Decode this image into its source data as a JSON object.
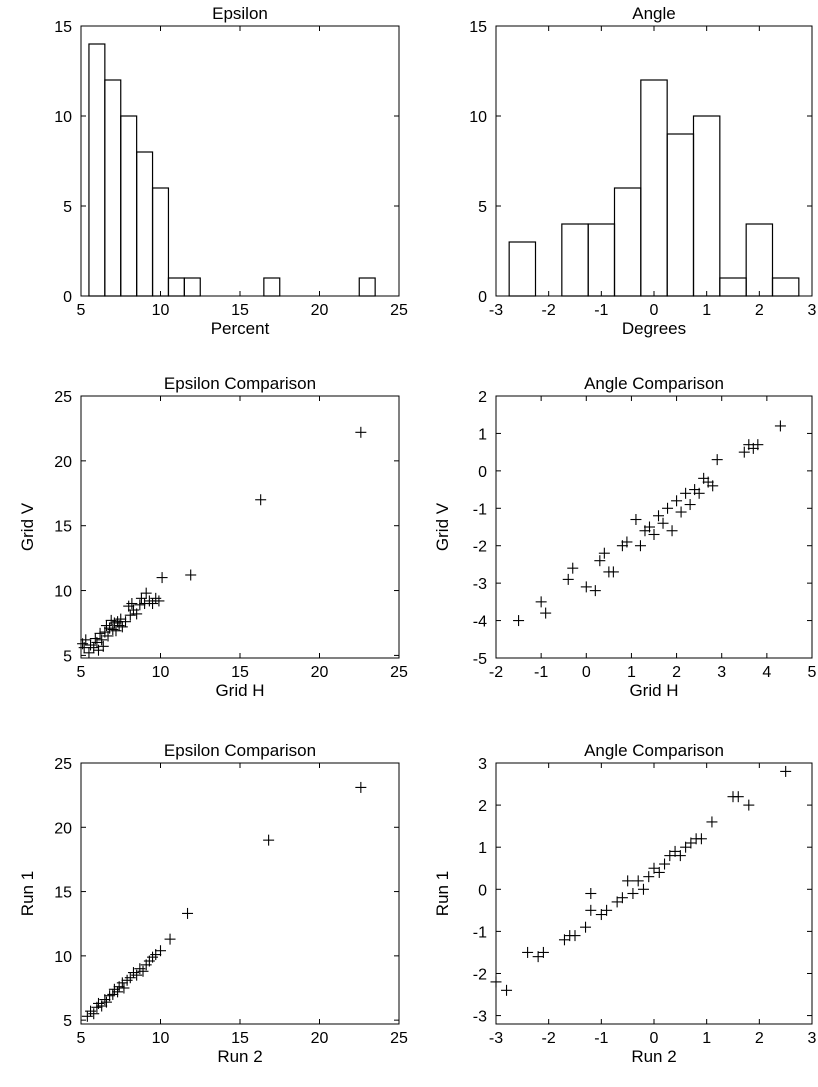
{
  "chart_data": [
    {
      "type": "histogram",
      "title": "Epsilon",
      "xlabel": "Percent",
      "ylabel": "",
      "xlim": [
        5,
        25
      ],
      "ylim": [
        0,
        15
      ],
      "xticks": [
        5,
        10,
        15,
        20,
        25
      ],
      "yticks": [
        0,
        5,
        10,
        15
      ],
      "bins": [
        {
          "x0": 5.5,
          "x1": 6.5,
          "count": 14
        },
        {
          "x0": 6.5,
          "x1": 7.5,
          "count": 12
        },
        {
          "x0": 7.5,
          "x1": 8.5,
          "count": 10
        },
        {
          "x0": 8.5,
          "x1": 9.5,
          "count": 8
        },
        {
          "x0": 9.5,
          "x1": 10.5,
          "count": 6
        },
        {
          "x0": 10.5,
          "x1": 11.5,
          "count": 1
        },
        {
          "x0": 11.5,
          "x1": 12.5,
          "count": 1
        },
        {
          "x0": 12.5,
          "x1": 13.5,
          "count": 0
        },
        {
          "x0": 13.5,
          "x1": 14.5,
          "count": 0
        },
        {
          "x0": 14.5,
          "x1": 15.5,
          "count": 0
        },
        {
          "x0": 15.5,
          "x1": 16.5,
          "count": 0
        },
        {
          "x0": 16.5,
          "x1": 17.5,
          "count": 1
        },
        {
          "x0": 17.5,
          "x1": 18.5,
          "count": 0
        },
        {
          "x0": 18.5,
          "x1": 19.5,
          "count": 0
        },
        {
          "x0": 19.5,
          "x1": 20.5,
          "count": 0
        },
        {
          "x0": 20.5,
          "x1": 21.5,
          "count": 0
        },
        {
          "x0": 21.5,
          "x1": 22.5,
          "count": 0
        },
        {
          "x0": 22.5,
          "x1": 23.5,
          "count": 1
        }
      ]
    },
    {
      "type": "histogram",
      "title": "Angle",
      "xlabel": "Degrees",
      "ylabel": "",
      "xlim": [
        -3,
        3
      ],
      "ylim": [
        0,
        15
      ],
      "xticks": [
        -3,
        -2,
        -1,
        0,
        1,
        2,
        3
      ],
      "yticks": [
        0,
        5,
        10,
        15
      ],
      "bins": [
        {
          "x0": -2.75,
          "x1": -2.25,
          "count": 3
        },
        {
          "x0": -2.25,
          "x1": -1.75,
          "count": 0
        },
        {
          "x0": -1.75,
          "x1": -1.25,
          "count": 4
        },
        {
          "x0": -1.25,
          "x1": -0.75,
          "count": 4
        },
        {
          "x0": -0.75,
          "x1": -0.25,
          "count": 6
        },
        {
          "x0": -0.25,
          "x1": 0.25,
          "count": 12
        },
        {
          "x0": 0.25,
          "x1": 0.75,
          "count": 9
        },
        {
          "x0": 0.75,
          "x1": 1.25,
          "count": 10
        },
        {
          "x0": 1.25,
          "x1": 1.75,
          "count": 1
        },
        {
          "x0": 1.75,
          "x1": 2.25,
          "count": 4
        },
        {
          "x0": 2.25,
          "x1": 2.75,
          "count": 1
        }
      ]
    },
    {
      "type": "scatter",
      "title": "Epsilon Comparison",
      "xlabel": "Grid H",
      "ylabel": "Grid V",
      "xlim": [
        5,
        25
      ],
      "ylim": [
        4.8,
        25
      ],
      "xticks": [
        5,
        10,
        15,
        20,
        25
      ],
      "yticks": [
        5,
        10,
        15,
        20,
        25
      ],
      "points": [
        [
          5.1,
          5.9
        ],
        [
          5.2,
          5.6
        ],
        [
          5.3,
          6.2
        ],
        [
          5.5,
          5.2
        ],
        [
          5.6,
          5.8
        ],
        [
          5.8,
          5.6
        ],
        [
          5.9,
          6.3
        ],
        [
          6.0,
          6.0
        ],
        [
          6.1,
          5.4
        ],
        [
          6.2,
          6.7
        ],
        [
          6.3,
          6.2
        ],
        [
          6.4,
          5.7
        ],
        [
          6.5,
          6.8
        ],
        [
          6.6,
          7.3
        ],
        [
          6.7,
          6.5
        ],
        [
          6.8,
          7.1
        ],
        [
          6.9,
          7.7
        ],
        [
          7.0,
          7.0
        ],
        [
          7.1,
          7.5
        ],
        [
          7.2,
          6.9
        ],
        [
          7.3,
          7.6
        ],
        [
          7.4,
          7.3
        ],
        [
          7.5,
          7.8
        ],
        [
          7.6,
          7.2
        ],
        [
          7.8,
          7.6
        ],
        [
          8.0,
          8.8
        ],
        [
          8.1,
          8.1
        ],
        [
          8.2,
          9.0
        ],
        [
          8.3,
          8.5
        ],
        [
          8.5,
          8.2
        ],
        [
          8.7,
          8.9
        ],
        [
          8.8,
          9.4
        ],
        [
          9.0,
          9.0
        ],
        [
          9.1,
          9.8
        ],
        [
          9.3,
          9.2
        ],
        [
          9.5,
          9.0
        ],
        [
          9.7,
          9.4
        ],
        [
          9.9,
          9.2
        ],
        [
          10.1,
          11.0
        ],
        [
          11.9,
          11.2
        ],
        [
          16.3,
          17.0
        ],
        [
          22.6,
          22.2
        ]
      ]
    },
    {
      "type": "scatter",
      "title": "Angle Comparison",
      "xlabel": "Grid H",
      "ylabel": "Grid V",
      "xlim": [
        -2,
        5
      ],
      "ylim": [
        -5,
        2
      ],
      "xticks": [
        -2,
        -1,
        0,
        1,
        2,
        3,
        4,
        5
      ],
      "yticks": [
        -5,
        -4,
        -3,
        -2,
        -1,
        0,
        1,
        2
      ],
      "points": [
        [
          -1.5,
          -4.0
        ],
        [
          -1.0,
          -3.5
        ],
        [
          -0.9,
          -3.8
        ],
        [
          -0.4,
          -2.9
        ],
        [
          -0.3,
          -2.6
        ],
        [
          0.0,
          -3.1
        ],
        [
          0.2,
          -3.2
        ],
        [
          0.3,
          -2.4
        ],
        [
          0.4,
          -2.2
        ],
        [
          0.5,
          -2.7
        ],
        [
          0.6,
          -2.7
        ],
        [
          0.8,
          -2.0
        ],
        [
          0.9,
          -1.9
        ],
        [
          1.1,
          -1.3
        ],
        [
          1.2,
          -2.0
        ],
        [
          1.3,
          -1.6
        ],
        [
          1.4,
          -1.5
        ],
        [
          1.5,
          -1.7
        ],
        [
          1.6,
          -1.2
        ],
        [
          1.7,
          -1.4
        ],
        [
          1.8,
          -1.0
        ],
        [
          1.9,
          -1.6
        ],
        [
          2.0,
          -0.8
        ],
        [
          2.1,
          -1.1
        ],
        [
          2.2,
          -0.6
        ],
        [
          2.3,
          -0.9
        ],
        [
          2.4,
          -0.5
        ],
        [
          2.5,
          -0.6
        ],
        [
          2.6,
          -0.2
        ],
        [
          2.7,
          -0.3
        ],
        [
          2.8,
          -0.4
        ],
        [
          2.9,
          0.3
        ],
        [
          3.5,
          0.5
        ],
        [
          3.6,
          0.7
        ],
        [
          3.7,
          0.6
        ],
        [
          3.8,
          0.7
        ],
        [
          4.3,
          1.2
        ]
      ]
    },
    {
      "type": "scatter",
      "title": "Epsilon Comparison",
      "xlabel": "Run 2",
      "ylabel": "Run 1",
      "xlim": [
        5,
        25
      ],
      "ylim": [
        4.7,
        25
      ],
      "xticks": [
        5,
        10,
        15,
        20,
        25
      ],
      "yticks": [
        5,
        10,
        15,
        20,
        25
      ],
      "points": [
        [
          5.4,
          5.3
        ],
        [
          5.6,
          5.7
        ],
        [
          5.8,
          5.5
        ],
        [
          6.0,
          6.0
        ],
        [
          6.1,
          6.3
        ],
        [
          6.3,
          6.1
        ],
        [
          6.5,
          6.6
        ],
        [
          6.6,
          6.4
        ],
        [
          6.8,
          6.9
        ],
        [
          7.0,
          7.0
        ],
        [
          7.1,
          7.4
        ],
        [
          7.3,
          7.2
        ],
        [
          7.4,
          7.6
        ],
        [
          7.6,
          7.9
        ],
        [
          7.7,
          7.5
        ],
        [
          7.9,
          8.1
        ],
        [
          8.1,
          8.3
        ],
        [
          8.3,
          8.7
        ],
        [
          8.5,
          8.5
        ],
        [
          8.7,
          9.0
        ],
        [
          8.9,
          8.8
        ],
        [
          9.1,
          9.3
        ],
        [
          9.3,
          9.6
        ],
        [
          9.5,
          9.9
        ],
        [
          9.7,
          10.1
        ],
        [
          10.0,
          10.4
        ],
        [
          10.6,
          11.3
        ],
        [
          11.7,
          13.3
        ],
        [
          16.8,
          19.0
        ],
        [
          22.6,
          23.1
        ]
      ]
    },
    {
      "type": "scatter",
      "title": "Angle Comparison",
      "xlabel": "Run 2",
      "ylabel": "Run 1",
      "xlim": [
        -3,
        3
      ],
      "ylim": [
        -3.2,
        3
      ],
      "xticks": [
        -3,
        -2,
        -1,
        0,
        1,
        2,
        3
      ],
      "yticks": [
        -3,
        -2,
        -1,
        0,
        1,
        2,
        3
      ],
      "points": [
        [
          -3.0,
          -2.2
        ],
        [
          -2.8,
          -2.4
        ],
        [
          -2.4,
          -1.5
        ],
        [
          -2.2,
          -1.6
        ],
        [
          -2.1,
          -1.5
        ],
        [
          -1.7,
          -1.2
        ],
        [
          -1.6,
          -1.1
        ],
        [
          -1.5,
          -1.1
        ],
        [
          -1.3,
          -0.9
        ],
        [
          -1.2,
          -0.1
        ],
        [
          -1.2,
          -0.5
        ],
        [
          -1.0,
          -0.6
        ],
        [
          -0.9,
          -0.5
        ],
        [
          -0.7,
          -0.3
        ],
        [
          -0.6,
          -0.2
        ],
        [
          -0.5,
          0.2
        ],
        [
          -0.4,
          -0.1
        ],
        [
          -0.3,
          0.2
        ],
        [
          -0.2,
          0.0
        ],
        [
          -0.1,
          0.3
        ],
        [
          0.0,
          0.5
        ],
        [
          0.1,
          0.4
        ],
        [
          0.2,
          0.6
        ],
        [
          0.3,
          0.8
        ],
        [
          0.4,
          0.9
        ],
        [
          0.5,
          0.8
        ],
        [
          0.6,
          1.0
        ],
        [
          0.7,
          1.1
        ],
        [
          0.8,
          1.2
        ],
        [
          0.9,
          1.2
        ],
        [
          1.1,
          1.6
        ],
        [
          1.5,
          2.2
        ],
        [
          1.6,
          2.2
        ],
        [
          1.8,
          2.0
        ],
        [
          2.5,
          2.8
        ]
      ]
    }
  ]
}
